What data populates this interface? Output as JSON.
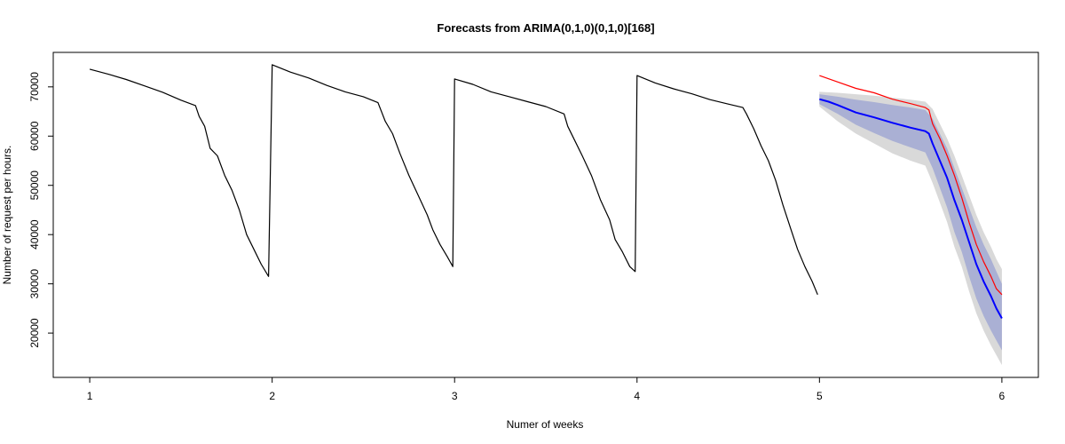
{
  "chart_data": {
    "type": "line",
    "title": "Forecasts from ARIMA(0,1,0)(0,1,0)[168]",
    "xlabel": "Numer of weeks",
    "ylabel": "Number of request per hours.",
    "xlim": [
      0.8,
      6.2
    ],
    "ylim": [
      11000,
      77000
    ],
    "x_ticks": [
      {
        "value": 1,
        "label": "1"
      },
      {
        "value": 2,
        "label": "2"
      },
      {
        "value": 3,
        "label": "3"
      },
      {
        "value": 4,
        "label": "4"
      },
      {
        "value": 5,
        "label": "5"
      },
      {
        "value": 6,
        "label": "6"
      }
    ],
    "y_ticks": [
      {
        "value": 20000,
        "label": "20000"
      },
      {
        "value": 30000,
        "label": "30000"
      },
      {
        "value": 40000,
        "label": "40000"
      },
      {
        "value": 50000,
        "label": "50000"
      },
      {
        "value": 60000,
        "label": "60000"
      },
      {
        "value": 70000,
        "label": "70000"
      }
    ],
    "grid": false,
    "legend": "none",
    "colors": {
      "observed": "#000000",
      "actual": "#ff0000",
      "forecast": "#0000ff",
      "band80": "#aab0d4",
      "band95": "#d9d9d9"
    },
    "observed": [
      [
        1.0,
        73600
      ],
      [
        1.1,
        72600
      ],
      [
        1.2,
        71500
      ],
      [
        1.3,
        70200
      ],
      [
        1.4,
        68900
      ],
      [
        1.5,
        67300
      ],
      [
        1.58,
        66200
      ],
      [
        1.6,
        64000
      ],
      [
        1.63,
        62000
      ],
      [
        1.66,
        57500
      ],
      [
        1.7,
        56000
      ],
      [
        1.74,
        52000
      ],
      [
        1.78,
        49000
      ],
      [
        1.82,
        45000
      ],
      [
        1.86,
        40000
      ],
      [
        1.9,
        37000
      ],
      [
        1.94,
        34000
      ],
      [
        1.98,
        31500
      ],
      [
        2.0,
        74500
      ],
      [
        2.1,
        73000
      ],
      [
        2.2,
        71800
      ],
      [
        2.3,
        70300
      ],
      [
        2.4,
        69000
      ],
      [
        2.5,
        68000
      ],
      [
        2.58,
        66800
      ],
      [
        2.62,
        63000
      ],
      [
        2.66,
        60500
      ],
      [
        2.7,
        56500
      ],
      [
        2.75,
        52000
      ],
      [
        2.8,
        48000
      ],
      [
        2.85,
        44000
      ],
      [
        2.88,
        41000
      ],
      [
        2.92,
        38000
      ],
      [
        2.96,
        35500
      ],
      [
        2.99,
        33500
      ],
      [
        3.0,
        71600
      ],
      [
        3.1,
        70500
      ],
      [
        3.2,
        69000
      ],
      [
        3.3,
        68000
      ],
      [
        3.4,
        67000
      ],
      [
        3.5,
        66000
      ],
      [
        3.6,
        64500
      ],
      [
        3.62,
        62000
      ],
      [
        3.66,
        59000
      ],
      [
        3.7,
        56000
      ],
      [
        3.75,
        52000
      ],
      [
        3.8,
        47000
      ],
      [
        3.85,
        43000
      ],
      [
        3.88,
        39000
      ],
      [
        3.92,
        36500
      ],
      [
        3.96,
        33500
      ],
      [
        3.99,
        32500
      ],
      [
        4.0,
        72300
      ],
      [
        4.1,
        70800
      ],
      [
        4.2,
        69600
      ],
      [
        4.3,
        68600
      ],
      [
        4.4,
        67400
      ],
      [
        4.5,
        66500
      ],
      [
        4.58,
        65800
      ],
      [
        4.6,
        64500
      ],
      [
        4.64,
        61500
      ],
      [
        4.68,
        58000
      ],
      [
        4.72,
        55000
      ],
      [
        4.76,
        51000
      ],
      [
        4.8,
        46000
      ],
      [
        4.84,
        41500
      ],
      [
        4.88,
        37000
      ],
      [
        4.92,
        33500
      ],
      [
        4.96,
        30500
      ],
      [
        4.99,
        27800
      ]
    ],
    "actual": [
      [
        5.0,
        72300
      ],
      [
        5.1,
        71000
      ],
      [
        5.2,
        69700
      ],
      [
        5.3,
        68800
      ],
      [
        5.4,
        67500
      ],
      [
        5.5,
        66600
      ],
      [
        5.58,
        65800
      ],
      [
        5.6,
        65300
      ],
      [
        5.62,
        62500
      ],
      [
        5.66,
        59500
      ],
      [
        5.7,
        56000
      ],
      [
        5.74,
        52000
      ],
      [
        5.78,
        47500
      ],
      [
        5.82,
        42500
      ],
      [
        5.86,
        38000
      ],
      [
        5.9,
        34500
      ],
      [
        5.94,
        31500
      ],
      [
        5.97,
        29000
      ],
      [
        6.0,
        27800
      ]
    ],
    "forecast": [
      [
        5.0,
        67500
      ],
      [
        5.05,
        67000
      ],
      [
        5.1,
        66300
      ],
      [
        5.2,
        64800
      ],
      [
        5.3,
        63800
      ],
      [
        5.4,
        62700
      ],
      [
        5.5,
        61700
      ],
      [
        5.58,
        61000
      ],
      [
        5.6,
        60500
      ],
      [
        5.62,
        58500
      ],
      [
        5.66,
        55000
      ],
      [
        5.7,
        51500
      ],
      [
        5.74,
        47000
      ],
      [
        5.78,
        43000
      ],
      [
        5.82,
        38500
      ],
      [
        5.86,
        34000
      ],
      [
        5.9,
        30500
      ],
      [
        5.94,
        27500
      ],
      [
        5.97,
        25000
      ],
      [
        6.0,
        23000
      ]
    ],
    "band80": {
      "x": [
        5.0,
        5.1,
        5.2,
        5.3,
        5.4,
        5.5,
        5.58,
        5.62,
        5.66,
        5.7,
        5.74,
        5.78,
        5.82,
        5.86,
        5.9,
        5.94,
        5.97,
        6.0
      ],
      "upper": [
        68500,
        68000,
        67400,
        66900,
        66300,
        65800,
        65300,
        63500,
        60500,
        57500,
        53500,
        49500,
        45500,
        41500,
        38000,
        35000,
        32500,
        30000
      ],
      "lower": [
        66500,
        64500,
        62300,
        60600,
        59000,
        57700,
        56700,
        53500,
        49500,
        45500,
        40500,
        36500,
        31500,
        27000,
        23500,
        20500,
        18500,
        16500
      ]
    },
    "band95": {
      "x": [
        5.0,
        5.1,
        5.2,
        5.3,
        5.4,
        5.5,
        5.58,
        5.62,
        5.66,
        5.7,
        5.74,
        5.78,
        5.82,
        5.86,
        5.9,
        5.94,
        5.97,
        6.0
      ],
      "upper": [
        69000,
        68800,
        68500,
        68200,
        67800,
        67400,
        67000,
        65500,
        62500,
        59500,
        56000,
        52000,
        48000,
        44000,
        40500,
        37500,
        35000,
        33000
      ],
      "lower": [
        66000,
        63000,
        60500,
        58500,
        56500,
        55000,
        54000,
        50500,
        46500,
        42500,
        37500,
        33500,
        28500,
        24000,
        20500,
        17500,
        15500,
        13500
      ]
    }
  }
}
